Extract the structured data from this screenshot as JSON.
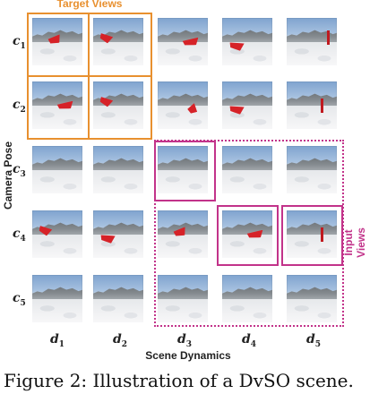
{
  "labels": {
    "target_views": "Target Views",
    "input_views": "Input Views",
    "camera_pose": "Camera Pose",
    "scene_dynamics": "Scene Dynamics"
  },
  "rows": [
    {
      "sym": "c",
      "sub": "1"
    },
    {
      "sym": "c",
      "sub": "2"
    },
    {
      "sym": "c",
      "sub": "3"
    },
    {
      "sym": "c",
      "sub": "4"
    },
    {
      "sym": "c",
      "sub": "5"
    }
  ],
  "cols": [
    {
      "sym": "d",
      "sub": "1"
    },
    {
      "sym": "d",
      "sub": "2"
    },
    {
      "sym": "d",
      "sub": "3"
    },
    {
      "sym": "d",
      "sub": "4"
    },
    {
      "sym": "d",
      "sub": "5"
    }
  ],
  "caption": "Figure 2: Illustration of a DvSO scene."
}
